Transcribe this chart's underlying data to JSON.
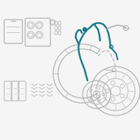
{
  "background_color": "#f5f5f5",
  "line_color": "#b0b0b0",
  "highlight_color": "#1a7a8a",
  "dark_line": "#888888",
  "fig_width": 2.0,
  "fig_height": 2.0,
  "dpi": 100
}
